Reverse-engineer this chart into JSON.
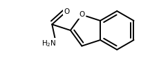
{
  "bg_color": "#ffffff",
  "lw": 1.4,
  "figsize": [
    2.17,
    0.87
  ],
  "dpi": 100
}
